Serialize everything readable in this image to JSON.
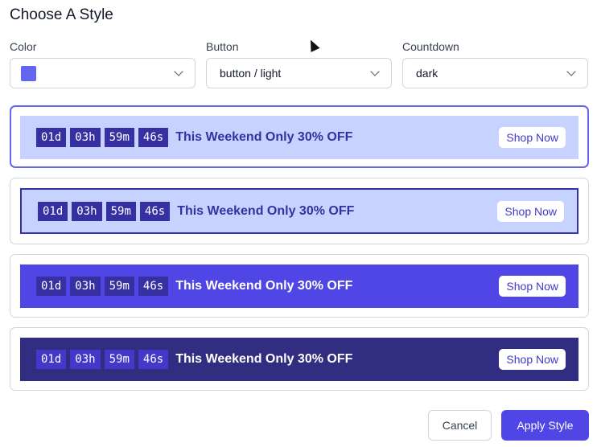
{
  "title": "Choose A Style",
  "fields": {
    "color": {
      "label": "Color",
      "value": "#6366f1"
    },
    "button": {
      "label": "Button",
      "value": "button / light"
    },
    "countdown": {
      "label": "Countdown",
      "value": "dark"
    }
  },
  "countdown": [
    "01d",
    "03h",
    "59m",
    "46s"
  ],
  "message": "This Weekend Only 30% OFF",
  "shop_label": "Shop Now",
  "styles": [
    {
      "bg": "#c7d2fe",
      "text": "#3730a3",
      "cd_bg": "#3730a3",
      "selected": true
    },
    {
      "bg": "#c7d2fe",
      "text": "#3730a3",
      "cd_bg": "#3730a3",
      "border": "#3730a3"
    },
    {
      "bg": "#4f46e5",
      "text": "#ffffff",
      "cd_bg": "#3730a3"
    },
    {
      "bg": "#312e81",
      "text": "#ffffff",
      "cd_bg": "#4338ca"
    }
  ],
  "actions": {
    "cancel": "Cancel",
    "apply": "Apply Style"
  }
}
